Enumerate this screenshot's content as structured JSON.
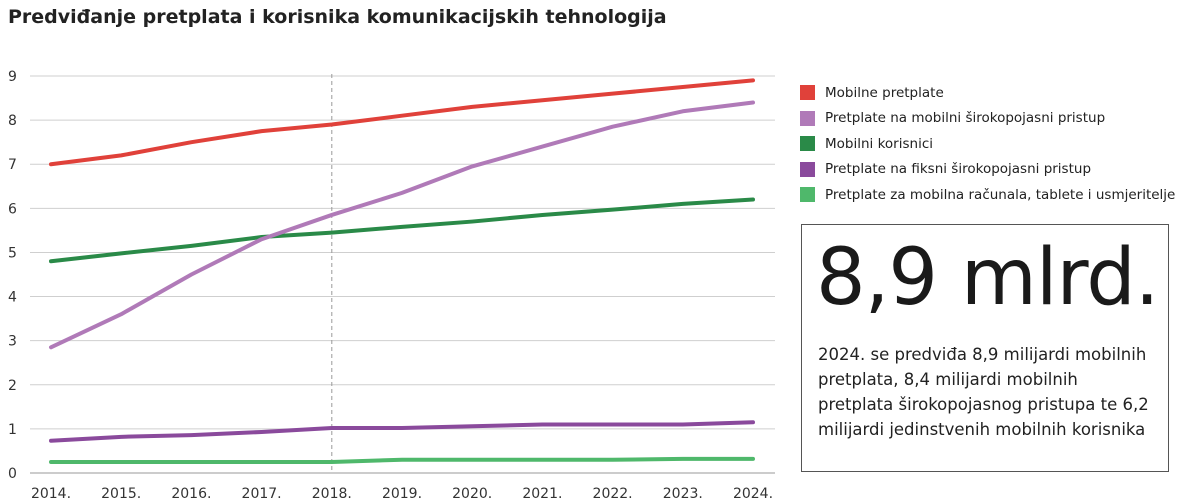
{
  "chart_data": {
    "type": "line",
    "title": "Predviđanje pretplata i korisnika komunikacijskih tehnologija",
    "xlabel": "",
    "ylabel": "",
    "x": [
      "2014.",
      "2015.",
      "2016.",
      "2017.",
      "2018.",
      "2019.",
      "2020.",
      "2021.",
      "2022.",
      "2023.",
      "2024."
    ],
    "ylim": [
      0,
      9
    ],
    "yticks": [
      0,
      1,
      2,
      3,
      4,
      5,
      6,
      7,
      8,
      9
    ],
    "grid": "horizontal",
    "reference_line_x": "2018.",
    "legend_position": "right",
    "series": [
      {
        "name": "Mobilne pretplate",
        "color": "#e0413a",
        "values": [
          7.0,
          7.2,
          7.5,
          7.75,
          7.9,
          8.1,
          8.3,
          8.45,
          8.6,
          8.75,
          8.9
        ]
      },
      {
        "name": "Pretplate na mobilni širokopojasni pristup",
        "color": "#b07ab8",
        "values": [
          2.85,
          3.6,
          4.5,
          5.3,
          5.85,
          6.35,
          6.95,
          7.4,
          7.85,
          8.2,
          8.4
        ]
      },
      {
        "name": "Mobilni korisnici",
        "color": "#2a8a48",
        "values": [
          4.8,
          4.98,
          5.15,
          5.35,
          5.45,
          5.58,
          5.7,
          5.85,
          5.97,
          6.1,
          6.2
        ]
      },
      {
        "name": "Pretplate na fiksni širokopojasni pristup",
        "color": "#8a4a9c",
        "values": [
          0.73,
          0.82,
          0.86,
          0.93,
          1.02,
          1.02,
          1.06,
          1.1,
          1.1,
          1.1,
          1.15
        ]
      },
      {
        "name": "Pretplate za mobilna računala, tablete i usmjeritelje",
        "color": "#4fb86b",
        "values": [
          0.25,
          0.25,
          0.25,
          0.25,
          0.25,
          0.3,
          0.3,
          0.3,
          0.3,
          0.32,
          0.32
        ]
      }
    ]
  },
  "callout": {
    "headline": "8,9 mlrd.",
    "text": "2024. se predviđa 8,9 milijardi mobilnih pretplata, 8,4 milijardi mobilnih pretplata širokopojasnog pristupa te 6,2 milijardi jedinstvenih mobilnih korisnika"
  }
}
